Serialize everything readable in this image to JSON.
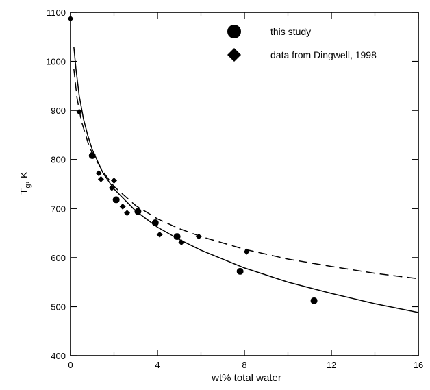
{
  "chart_data": {
    "type": "scatter",
    "xlabel": "wt% total water",
    "ylabel_main": "T",
    "ylabel_sub": "g",
    "ylabel_suffix": ", K",
    "xlim": [
      0,
      16
    ],
    "ylim": [
      400,
      1100
    ],
    "x_ticks": [
      0,
      4,
      8,
      12,
      16
    ],
    "x_minor_ticks": [
      2,
      6,
      10,
      14
    ],
    "y_ticks": [
      400,
      500,
      600,
      700,
      800,
      900,
      1000,
      1100
    ],
    "legend_position": "top-right",
    "grid": false,
    "series": [
      {
        "name": "this study",
        "marker": "circle",
        "points": [
          {
            "x": 1.0,
            "y": 808
          },
          {
            "x": 2.1,
            "y": 718
          },
          {
            "x": 3.1,
            "y": 694
          },
          {
            "x": 3.9,
            "y": 671
          },
          {
            "x": 4.9,
            "y": 643
          },
          {
            "x": 7.8,
            "y": 572
          },
          {
            "x": 11.2,
            "y": 512
          }
        ]
      },
      {
        "name": "data from Dingwell, 1998",
        "marker": "diamond",
        "points": [
          {
            "x": 0.0,
            "y": 1087
          },
          {
            "x": 0.4,
            "y": 897
          },
          {
            "x": 1.3,
            "y": 772
          },
          {
            "x": 1.4,
            "y": 760
          },
          {
            "x": 1.9,
            "y": 742
          },
          {
            "x": 2.0,
            "y": 757
          },
          {
            "x": 2.4,
            "y": 704
          },
          {
            "x": 2.6,
            "y": 691
          },
          {
            "x": 4.1,
            "y": 647
          },
          {
            "x": 5.1,
            "y": 631
          },
          {
            "x": 5.9,
            "y": 643
          },
          {
            "x": 8.1,
            "y": 612
          }
        ]
      }
    ],
    "fit_curves": [
      {
        "style": "solid",
        "points": [
          [
            0.15,
            1030
          ],
          [
            0.25,
            985
          ],
          [
            0.4,
            930
          ],
          [
            0.6,
            882
          ],
          [
            0.8,
            848
          ],
          [
            1.0,
            820
          ],
          [
            1.5,
            772
          ],
          [
            2.0,
            740
          ],
          [
            3.0,
            695
          ],
          [
            4.0,
            662
          ],
          [
            5.0,
            637
          ],
          [
            6.0,
            615
          ],
          [
            8.0,
            579
          ],
          [
            10.0,
            550
          ],
          [
            12.0,
            527
          ],
          [
            14.0,
            506
          ],
          [
            16.0,
            488
          ]
        ]
      },
      {
        "style": "dashed",
        "points": [
          [
            0.15,
            985
          ],
          [
            0.3,
            925
          ],
          [
            0.5,
            878
          ],
          [
            0.8,
            835
          ],
          [
            1.0,
            812
          ],
          [
            1.5,
            775
          ],
          [
            2.0,
            745
          ],
          [
            3.0,
            706
          ],
          [
            4.0,
            679
          ],
          [
            5.0,
            659
          ],
          [
            6.0,
            643
          ],
          [
            8.0,
            617
          ],
          [
            10.0,
            597
          ],
          [
            12.0,
            582
          ],
          [
            14.0,
            568
          ],
          [
            16.0,
            557
          ]
        ]
      }
    ]
  }
}
